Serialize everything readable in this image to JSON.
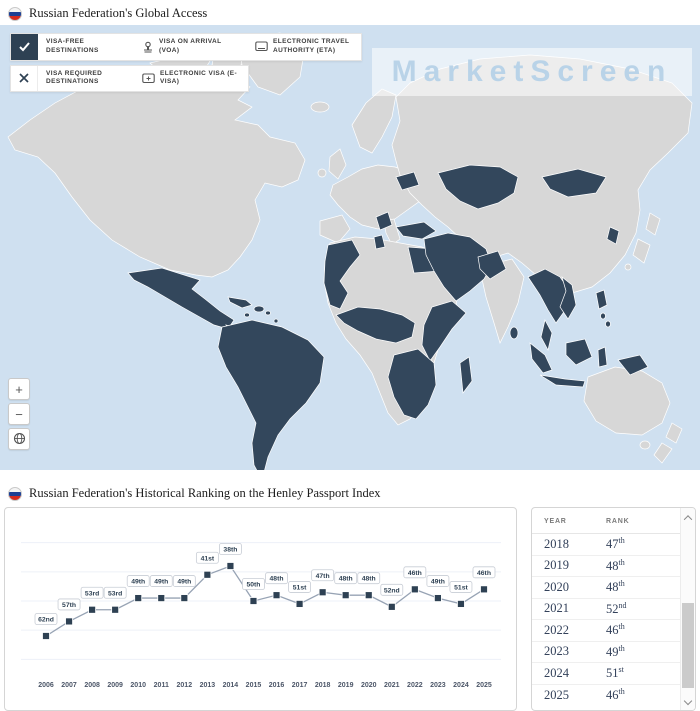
{
  "colors": {
    "ocean": "#cfe0f0",
    "land": "#d7d7d7",
    "highlight": "#33475c",
    "map_border": "#ffffff",
    "accent_dark": "#2e4153",
    "chart_line": "#97a3b4",
    "watermark_text": "#b9d3e8"
  },
  "access_section": {
    "title": "Russian Federation's Global Access",
    "flag_icon": "russia-flag-icon",
    "legend": {
      "visa_free": {
        "icon": "check-icon",
        "state": "checked",
        "label": "VISA-FREE DESTINATIONS"
      },
      "voa": {
        "icon": "stamp-icon",
        "label": "VISA ON ARRIVAL (VOA)"
      },
      "eta": {
        "icon": "card-icon",
        "label": "ELECTRONIC TRAVEL AUTHORITY (ETA)"
      },
      "visa_required": {
        "icon": "x-icon",
        "state": "unchecked",
        "label": "VISA REQUIRED DESTINATIONS"
      },
      "evisa": {
        "icon": "card-icon",
        "label": "ELECTRONIC VISA (E-VISA)"
      }
    },
    "watermark": "MarketScreen",
    "controls": {
      "zoom_in": "+",
      "zoom_out": "−",
      "globe": "globe-icon"
    }
  },
  "ranking_section": {
    "title": "Russian Federation's Historical Ranking on the Henley Passport Index"
  },
  "chart_data": {
    "type": "line",
    "title": "Russian Federation's Historical Ranking on the Henley Passport Index",
    "x": [
      2006,
      2007,
      2008,
      2009,
      2010,
      2011,
      2012,
      2013,
      2014,
      2015,
      2016,
      2017,
      2018,
      2019,
      2020,
      2021,
      2022,
      2023,
      2024,
      2025
    ],
    "values": [
      62,
      57,
      53,
      53,
      49,
      49,
      49,
      41,
      38,
      50,
      48,
      51,
      47,
      48,
      48,
      52,
      46,
      49,
      51,
      46
    ],
    "point_labels": [
      "62nd",
      "57th",
      "53rd",
      "53rd",
      "49th",
      "49th",
      "49th",
      "41st",
      "38th",
      "50th",
      "48th",
      "51st",
      "47th",
      "48th",
      "48th",
      "52nd",
      "46th",
      "49th",
      "51st",
      "46th"
    ],
    "y_inverted": true,
    "ylim": [
      25,
      70
    ],
    "gridline_ranks": [
      30,
      40,
      50,
      60,
      70
    ],
    "grid": true,
    "legend_position": "none",
    "marker": "square"
  },
  "table": {
    "columns": [
      "YEAR",
      "RANK"
    ],
    "rows": [
      {
        "year": "2018",
        "rank": "47",
        "ordinal": "th"
      },
      {
        "year": "2019",
        "rank": "48",
        "ordinal": "th"
      },
      {
        "year": "2020",
        "rank": "48",
        "ordinal": "th"
      },
      {
        "year": "2021",
        "rank": "52",
        "ordinal": "nd"
      },
      {
        "year": "2022",
        "rank": "46",
        "ordinal": "th"
      },
      {
        "year": "2023",
        "rank": "49",
        "ordinal": "th"
      },
      {
        "year": "2024",
        "rank": "51",
        "ordinal": "st"
      },
      {
        "year": "2025",
        "rank": "46",
        "ordinal": "th"
      }
    ]
  }
}
